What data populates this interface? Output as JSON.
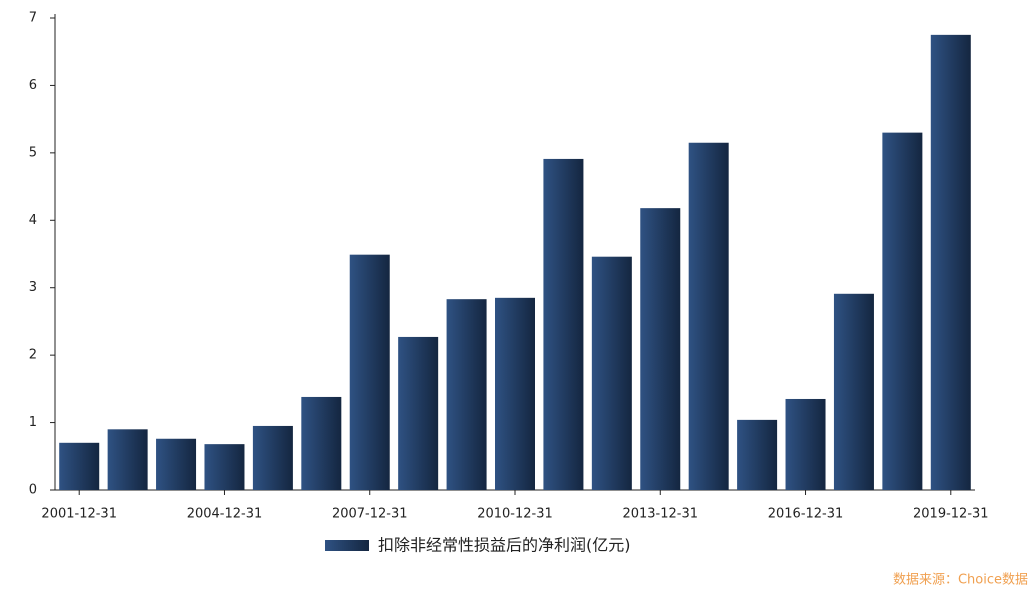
{
  "chart_data": {
    "type": "bar",
    "categories": [
      "2001-12-31",
      null,
      null,
      "2004-12-31",
      null,
      null,
      "2007-12-31",
      null,
      null,
      "2010-12-31",
      null,
      null,
      "2013-12-31",
      null,
      null,
      "2016-12-31",
      null,
      null,
      "2019-12-31"
    ],
    "series": [
      {
        "name": "扣除非经常性损益后的净利润(亿元)",
        "color": "#2f5283",
        "values": [
          0.7,
          0.9,
          0.76,
          0.68,
          0.95,
          1.38,
          3.49,
          2.27,
          2.83,
          2.85,
          4.91,
          3.46,
          4.18,
          5.15,
          1.04,
          1.35,
          2.91,
          5.3,
          6.75
        ]
      }
    ],
    "ylim": [
      0,
      7
    ],
    "yticks": [
      0,
      1,
      2,
      3,
      4,
      5,
      6,
      7
    ],
    "source": "数据来源：Choice数据"
  }
}
